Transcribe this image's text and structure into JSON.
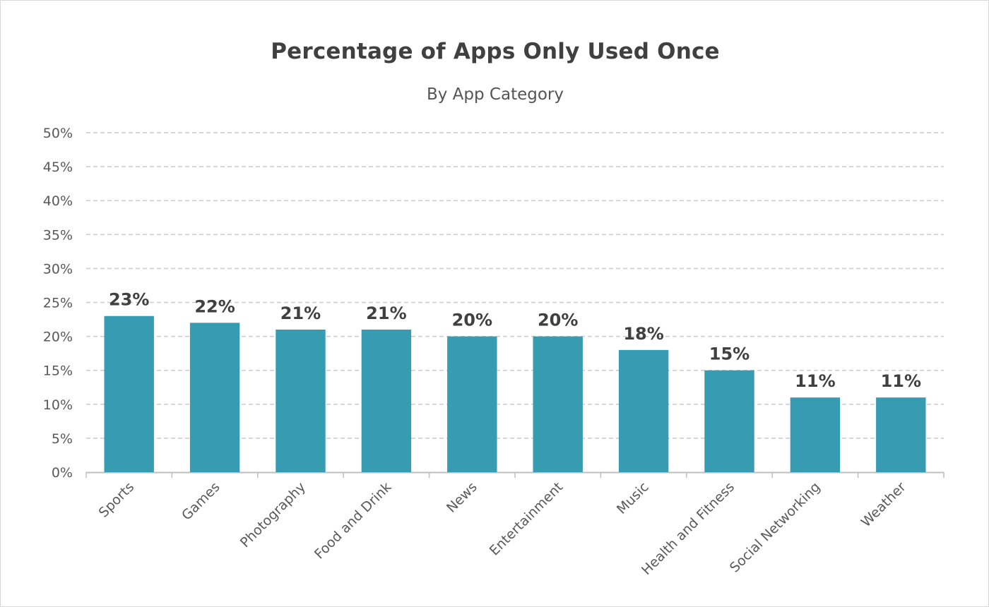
{
  "chart_data": {
    "type": "bar",
    "title": "Percentage of Apps Only Used Once",
    "subtitle": "By App Category",
    "xlabel": "",
    "ylabel": "",
    "categories": [
      "Sports",
      "Games",
      "Photography",
      "Food and Drink",
      "News",
      "Entertainment",
      "Music",
      "Health and Fitness",
      "Social Networking",
      "Weather"
    ],
    "values": [
      23,
      22,
      21,
      21,
      20,
      20,
      18,
      15,
      11,
      11
    ],
    "value_labels": [
      "23%",
      "22%",
      "21%",
      "21%",
      "20%",
      "20%",
      "18%",
      "15%",
      "11%",
      "11%"
    ],
    "ylim": [
      0,
      50
    ],
    "yticks": [
      0,
      5,
      10,
      15,
      20,
      25,
      30,
      35,
      40,
      45,
      50
    ],
    "ytick_labels": [
      "0%",
      "5%",
      "10%",
      "15%",
      "20%",
      "25%",
      "30%",
      "35%",
      "40%",
      "45%",
      "50%"
    ],
    "grid": true,
    "legend": "none",
    "bar_color": "#379bb1",
    "grid_color": "#cccccc"
  }
}
